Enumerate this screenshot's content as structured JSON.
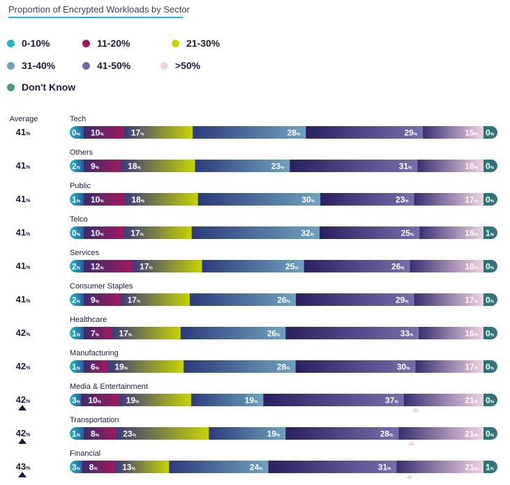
{
  "chart_data": {
    "type": "bar",
    "title": "Proportion of Encrypted Workloads by Sector",
    "stacked": true,
    "orientation": "horizontal",
    "average_label": "Average",
    "legend": [
      {
        "label": "0-10%",
        "color": "#1fb6c9"
      },
      {
        "label": "11-20%",
        "color": "#a1195d"
      },
      {
        "label": "21-30%",
        "color": "#c8d400"
      },
      {
        "label": "31-40%",
        "color": "#6fa2bd"
      },
      {
        "label": "41-50%",
        "color": "#6f6ba3"
      },
      {
        "label": ">50%",
        "color": "#f2d3e3"
      },
      {
        "label": "Don't Know",
        "color": "#4e9a74"
      }
    ],
    "categories": [
      "Tech",
      "Others",
      "Public",
      "Telco",
      "Services",
      "Consumer Staples",
      "Healthcare",
      "Manufacturing",
      "Media & Entertainment",
      "Transportation",
      "Financial"
    ],
    "averages": [
      41,
      41,
      41,
      41,
      41,
      41,
      42,
      42,
      42,
      42,
      43
    ],
    "average_unit": "%",
    "series": [
      {
        "name": "0-10%",
        "values": [
          0,
          2,
          1,
          0,
          2,
          2,
          1,
          1,
          3,
          1,
          3
        ]
      },
      {
        "name": "11-20%",
        "values": [
          10,
          9,
          10,
          10,
          12,
          9,
          7,
          6,
          10,
          8,
          8
        ]
      },
      {
        "name": "21-30%",
        "values": [
          17,
          18,
          18,
          17,
          17,
          17,
          17,
          19,
          19,
          23,
          13
        ]
      },
      {
        "name": "31-40%",
        "values": [
          28,
          23,
          30,
          32,
          25,
          26,
          26,
          28,
          19,
          19,
          24
        ]
      },
      {
        "name": "41-50%",
        "values": [
          29,
          31,
          23,
          25,
          26,
          29,
          33,
          30,
          37,
          28,
          31
        ]
      },
      {
        "name": ">50%",
        "values": [
          15,
          16,
          17,
          16,
          18,
          17,
          16,
          17,
          21,
          21,
          21
        ]
      },
      {
        "name": "Don't Know",
        "values": [
          0,
          0,
          0,
          1,
          0,
          0,
          0,
          0,
          0,
          0,
          1
        ]
      }
    ],
    "rising_markers": [
      false,
      false,
      false,
      false,
      false,
      false,
      false,
      false,
      true,
      true,
      true
    ]
  }
}
